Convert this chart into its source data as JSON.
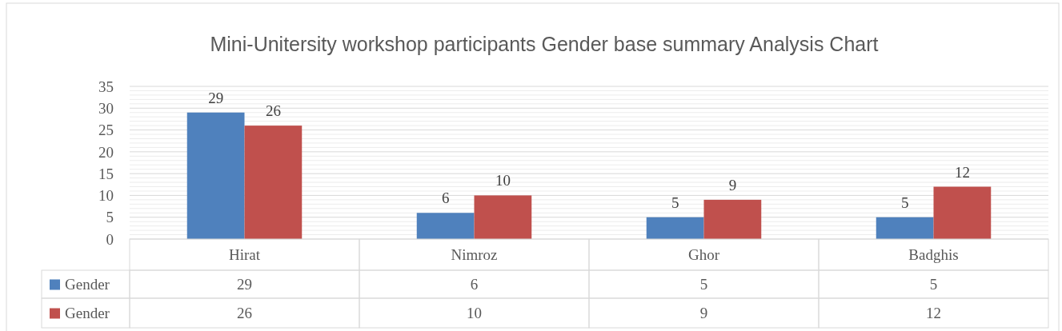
{
  "chart_data": {
    "type": "bar",
    "title": "Mini-Unitersity workshop participants Gender base summary Analysis Chart",
    "categories": [
      "Hirat",
      "Nimroz",
      "Ghor",
      "Badghis"
    ],
    "series": [
      {
        "name": "Gender",
        "color": "#4f81bd",
        "values": [
          29,
          6,
          5,
          5
        ],
        "value_labels": [
          "29",
          "6",
          "5",
          "5"
        ]
      },
      {
        "name": "Gender",
        "color": "#c0504d",
        "values": [
          26,
          10,
          9,
          12
        ],
        "value_labels": [
          "26",
          "10",
          "9",
          "12"
        ]
      }
    ],
    "ylim": [
      0,
      35
    ],
    "yticks": [
      0,
      {
        "value": 1,
        "label": null
      },
      {
        "value": 2,
        "label": null
      },
      {
        "value": 3,
        "label": null
      },
      {
        "value": 4,
        "label": null
      },
      5,
      {
        "value": 6,
        "label": null
      },
      {
        "value": 7,
        "label": null
      },
      {
        "value": 8,
        "label": null
      },
      {
        "value": 9,
        "label": null
      },
      10,
      {
        "value": 11,
        "label": null
      },
      {
        "value": 12,
        "label": null
      },
      {
        "value": 13,
        "label": null
      },
      {
        "value": 14,
        "label": null
      },
      15,
      {
        "value": 16,
        "label": null
      },
      {
        "value": 17,
        "label": null
      },
      {
        "value": 18,
        "label": null
      },
      {
        "value": 19,
        "label": null
      },
      20,
      {
        "value": 21,
        "label": null
      },
      {
        "value": 22,
        "label": null
      },
      {
        "value": 23,
        "label": null
      },
      {
        "value": 24,
        "label": null
      },
      25,
      {
        "value": 26,
        "label": null
      },
      {
        "value": 27,
        "label": null
      },
      {
        "value": 28,
        "label": null
      },
      {
        "value": 29,
        "label": null
      },
      30,
      {
        "value": 31,
        "label": null
      },
      {
        "value": 32,
        "label": null
      },
      {
        "value": 33,
        "label": null
      },
      {
        "value": 34,
        "label": null
      },
      35
    ],
    "grid": true,
    "legend": "bottom",
    "annotations": [
      "29",
      "6",
      "5",
      "5",
      "26",
      "10",
      "9",
      "12"
    ]
  }
}
